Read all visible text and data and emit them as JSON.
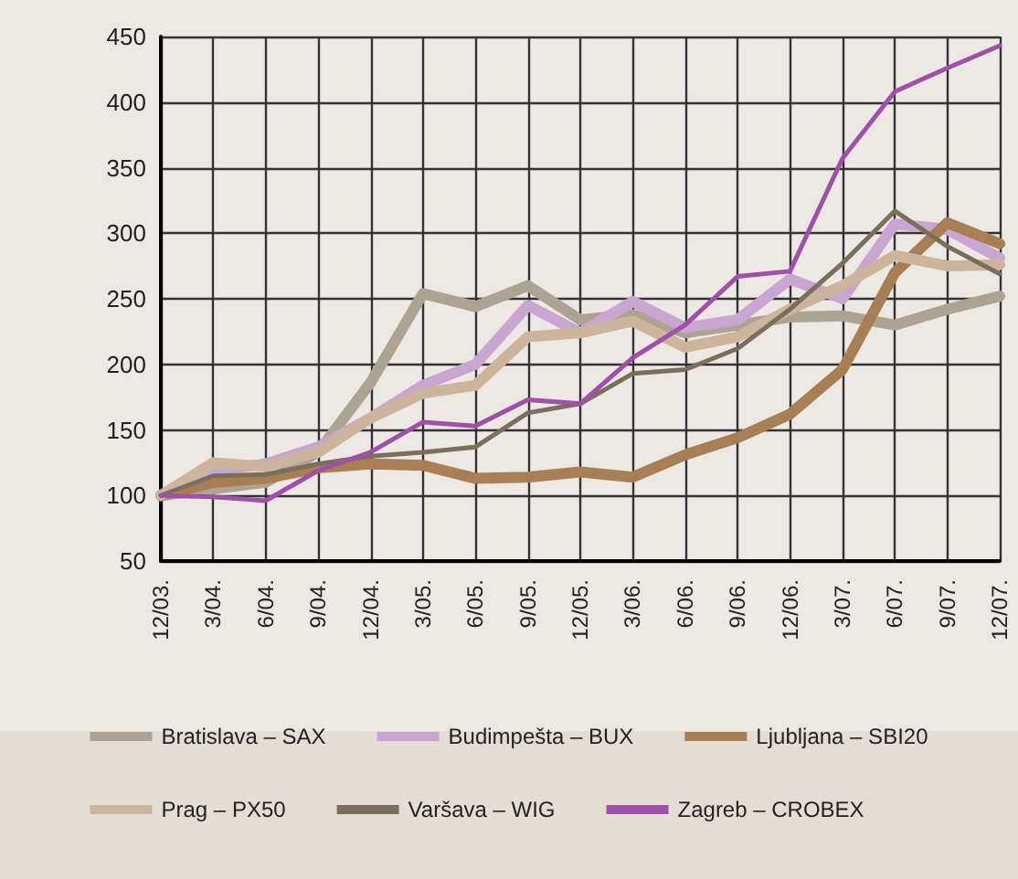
{
  "chart_data": {
    "type": "line",
    "categories": [
      "12/03.",
      "3/04.",
      "6/04.",
      "9/04.",
      "12/04.",
      "3/05.",
      "6/05.",
      "9/05.",
      "12/05.",
      "3/06.",
      "6/06.",
      "9/06.",
      "12/06.",
      "3/07.",
      "6/07.",
      "9/07.",
      "12/07."
    ],
    "series": [
      {
        "name": "Bratislava – SAX",
        "color": "#ada393",
        "values": [
          100,
          105,
          110,
          133,
          186,
          254,
          244,
          260,
          234,
          238,
          224,
          230,
          236,
          237,
          230,
          242,
          252
        ]
      },
      {
        "name": "Budimpešta – BUX",
        "color": "#c9a5d1",
        "values": [
          100,
          119,
          124,
          137,
          159,
          184,
          200,
          245,
          224,
          248,
          228,
          234,
          265,
          250,
          307,
          303,
          281
        ]
      },
      {
        "name": "Ljubljana – SBI20",
        "color": "#a87e55",
        "values": [
          100,
          110,
          113,
          121,
          124,
          123,
          113,
          114,
          118,
          114,
          131,
          144,
          162,
          196,
          270,
          308,
          292
        ]
      },
      {
        "name": "Prag – PX50",
        "color": "#cdb49c",
        "values": [
          100,
          125,
          122,
          133,
          159,
          178,
          184,
          221,
          224,
          233,
          213,
          221,
          242,
          260,
          283,
          275,
          276
        ]
      },
      {
        "name": "Varšava – WIG",
        "color": "#7a6e5d",
        "values": [
          100,
          115,
          116,
          124,
          130,
          133,
          137,
          163,
          170,
          193,
          196,
          212,
          242,
          277,
          317,
          290,
          269
        ]
      },
      {
        "name": "Zagreb – CROBEX",
        "color": "#a050a8",
        "values": [
          100,
          99,
          96,
          119,
          133,
          156,
          153,
          173,
          170,
          205,
          230,
          267,
          271,
          357,
          408,
          426,
          443
        ]
      }
    ],
    "ylim": [
      50,
      450
    ],
    "yticks": [
      50,
      100,
      150,
      200,
      250,
      300,
      350,
      400,
      450
    ],
    "grid": true,
    "legend": "bottom",
    "marker": "none",
    "line_style": "solid"
  }
}
